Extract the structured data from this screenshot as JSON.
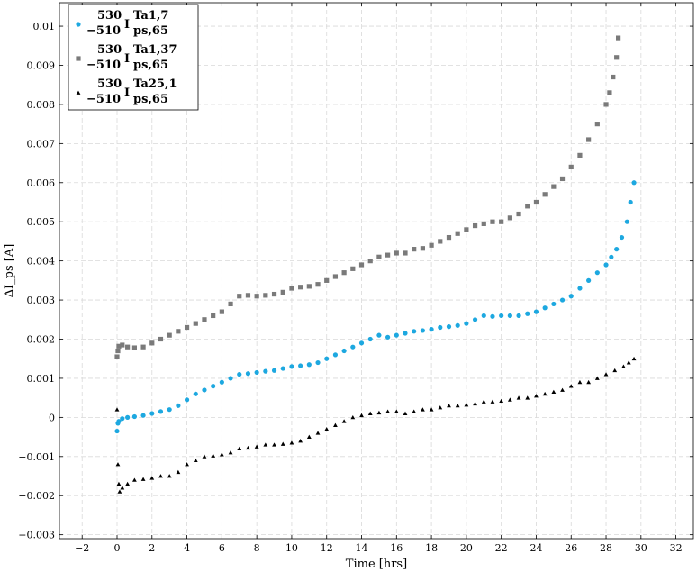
{
  "chart_data": {
    "type": "scatter",
    "xlabel": "Time [hrs]",
    "ylabel": "ΔI_ps [A]",
    "xlim": [
      -3.3,
      33.0
    ],
    "ylim": [
      -0.0031,
      0.0106
    ],
    "xticks": [
      -2,
      0,
      2,
      4,
      6,
      8,
      10,
      12,
      14,
      16,
      18,
      20,
      22,
      24,
      26,
      28,
      30,
      32
    ],
    "yticks": [
      -0.003,
      -0.002,
      -0.001,
      0,
      0.001,
      0.002,
      0.003,
      0.004,
      0.005,
      0.006,
      0.007,
      0.008,
      0.009,
      0.01
    ],
    "ytick_labels": [
      "−0.003",
      "−0.002",
      "−0.001",
      "0",
      "0.001",
      "0.002",
      "0.003",
      "0.004",
      "0.005",
      "0.006",
      "0.007",
      "0.008",
      "0.009",
      "0.01"
    ],
    "grid": true,
    "legend_position": "top-left",
    "series": [
      {
        "name": "530−510 I ps,65 Ta1,7",
        "legend": {
          "top": "530",
          "bottom": "−510",
          "sub": "ps,65",
          "sup": "Ta1,7"
        },
        "marker": "circle",
        "color": "#1da8e0",
        "x": [
          0,
          0.05,
          0.1,
          0.3,
          0.6,
          1.0,
          1.5,
          2.0,
          2.5,
          3.0,
          3.5,
          4.0,
          4.5,
          5.0,
          5.5,
          6.0,
          6.5,
          7.0,
          7.5,
          8.0,
          8.5,
          9.0,
          9.5,
          10.0,
          10.5,
          11.0,
          11.5,
          12.0,
          12.5,
          13.0,
          13.5,
          14.0,
          14.5,
          15.0,
          15.5,
          16.0,
          16.5,
          17.0,
          17.5,
          18.0,
          18.5,
          19.0,
          19.5,
          20.0,
          20.5,
          21.0,
          21.5,
          22.0,
          22.5,
          23.0,
          23.5,
          24.0,
          24.5,
          25.0,
          25.5,
          26.0,
          26.5,
          27.0,
          27.5,
          28.0,
          28.3,
          28.6,
          28.9,
          29.2,
          29.4,
          29.6
        ],
        "y": [
          -0.00035,
          -0.00015,
          -0.0001,
          -3e-05,
          0.0,
          2e-05,
          5e-05,
          0.0001,
          0.00015,
          0.0002,
          0.0003,
          0.00045,
          0.0006,
          0.0007,
          0.0008,
          0.0009,
          0.001,
          0.0011,
          0.00112,
          0.00115,
          0.00118,
          0.0012,
          0.00125,
          0.0013,
          0.00132,
          0.00135,
          0.0014,
          0.0015,
          0.0016,
          0.0017,
          0.0018,
          0.0019,
          0.002,
          0.0021,
          0.00205,
          0.0021,
          0.00215,
          0.0022,
          0.00222,
          0.00225,
          0.0023,
          0.00232,
          0.00235,
          0.0024,
          0.0025,
          0.0026,
          0.00258,
          0.0026,
          0.0026,
          0.0026,
          0.00265,
          0.0027,
          0.0028,
          0.0029,
          0.003,
          0.0031,
          0.0033,
          0.0035,
          0.0037,
          0.0039,
          0.0041,
          0.0043,
          0.0046,
          0.005,
          0.0055,
          0.006
        ]
      },
      {
        "name": "530−510 I ps,65 Ta1,37",
        "legend": {
          "top": "530",
          "bottom": "−510",
          "sub": "ps,65",
          "sup": "Ta1,37"
        },
        "marker": "square",
        "color": "#7a7a7a",
        "x": [
          0,
          0.05,
          0.1,
          0.3,
          0.6,
          1.0,
          1.5,
          2.0,
          2.5,
          3.0,
          3.5,
          4.0,
          4.5,
          5.0,
          5.5,
          6.0,
          6.5,
          7.0,
          7.5,
          8.0,
          8.5,
          9.0,
          9.5,
          10.0,
          10.5,
          11.0,
          11.5,
          12.0,
          12.5,
          13.0,
          13.5,
          14.0,
          14.5,
          15.0,
          15.5,
          16.0,
          16.5,
          17.0,
          17.5,
          18.0,
          18.5,
          19.0,
          19.5,
          20.0,
          20.5,
          21.0,
          21.5,
          22.0,
          22.5,
          23.0,
          23.5,
          24.0,
          24.5,
          25.0,
          25.5,
          26.0,
          26.5,
          27.0,
          27.5,
          28.0,
          28.2,
          28.4,
          28.6,
          28.7
        ],
        "y": [
          0.00155,
          0.0017,
          0.00182,
          0.00185,
          0.0018,
          0.00178,
          0.0018,
          0.0019,
          0.002,
          0.0021,
          0.0022,
          0.0023,
          0.0024,
          0.0025,
          0.0026,
          0.0027,
          0.0029,
          0.0031,
          0.00312,
          0.0031,
          0.00312,
          0.00315,
          0.0032,
          0.0033,
          0.00333,
          0.00335,
          0.0034,
          0.0035,
          0.0036,
          0.0037,
          0.0038,
          0.0039,
          0.004,
          0.0041,
          0.00415,
          0.0042,
          0.0042,
          0.0043,
          0.00432,
          0.0044,
          0.0045,
          0.0046,
          0.0047,
          0.0048,
          0.0049,
          0.00495,
          0.005,
          0.005,
          0.0051,
          0.0052,
          0.0054,
          0.0055,
          0.0057,
          0.0059,
          0.0061,
          0.0064,
          0.0067,
          0.0071,
          0.0075,
          0.008,
          0.0083,
          0.0087,
          0.0092,
          0.0097
        ]
      },
      {
        "name": "530−510 I ps,65 Ta25,1",
        "legend": {
          "top": "530",
          "bottom": "−510",
          "sub": "ps,65",
          "sup": "Ta25,1"
        },
        "marker": "triangle",
        "color": "#000000",
        "x": [
          0,
          0.05,
          0.1,
          0.15,
          0.3,
          0.6,
          1.0,
          1.5,
          2.0,
          2.5,
          3.0,
          3.5,
          4.0,
          4.5,
          5.0,
          5.5,
          6.0,
          6.5,
          7.0,
          7.5,
          8.0,
          8.5,
          9.0,
          9.5,
          10.0,
          10.5,
          11.0,
          11.5,
          12.0,
          12.5,
          13.0,
          13.5,
          14.0,
          14.5,
          15.0,
          15.5,
          16.0,
          16.5,
          17.0,
          17.5,
          18.0,
          18.5,
          19.0,
          19.5,
          20.0,
          20.5,
          21.0,
          21.5,
          22.0,
          22.5,
          23.0,
          23.5,
          24.0,
          24.5,
          25.0,
          25.5,
          26.0,
          26.5,
          27.0,
          27.5,
          28.0,
          28.5,
          29.0,
          29.3,
          29.6
        ],
        "y": [
          0.0002,
          -0.0012,
          -0.0017,
          -0.0019,
          -0.0018,
          -0.0017,
          -0.0016,
          -0.00158,
          -0.00155,
          -0.0015,
          -0.0015,
          -0.0014,
          -0.0012,
          -0.0011,
          -0.001,
          -0.00098,
          -0.00095,
          -0.0009,
          -0.0008,
          -0.00078,
          -0.00075,
          -0.0007,
          -0.0007,
          -0.00068,
          -0.00065,
          -0.0006,
          -0.0005,
          -0.0004,
          -0.0003,
          -0.0002,
          -0.0001,
          0.0,
          5e-05,
          0.0001,
          0.00012,
          0.00015,
          0.00015,
          0.0001,
          0.00015,
          0.0002,
          0.0002,
          0.00025,
          0.0003,
          0.0003,
          0.00032,
          0.00035,
          0.0004,
          0.0004,
          0.00042,
          0.00045,
          0.0005,
          0.0005,
          0.00055,
          0.0006,
          0.00065,
          0.0007,
          0.0008,
          0.0009,
          0.0009,
          0.001,
          0.0011,
          0.0012,
          0.0013,
          0.0014,
          0.0015
        ]
      }
    ]
  }
}
